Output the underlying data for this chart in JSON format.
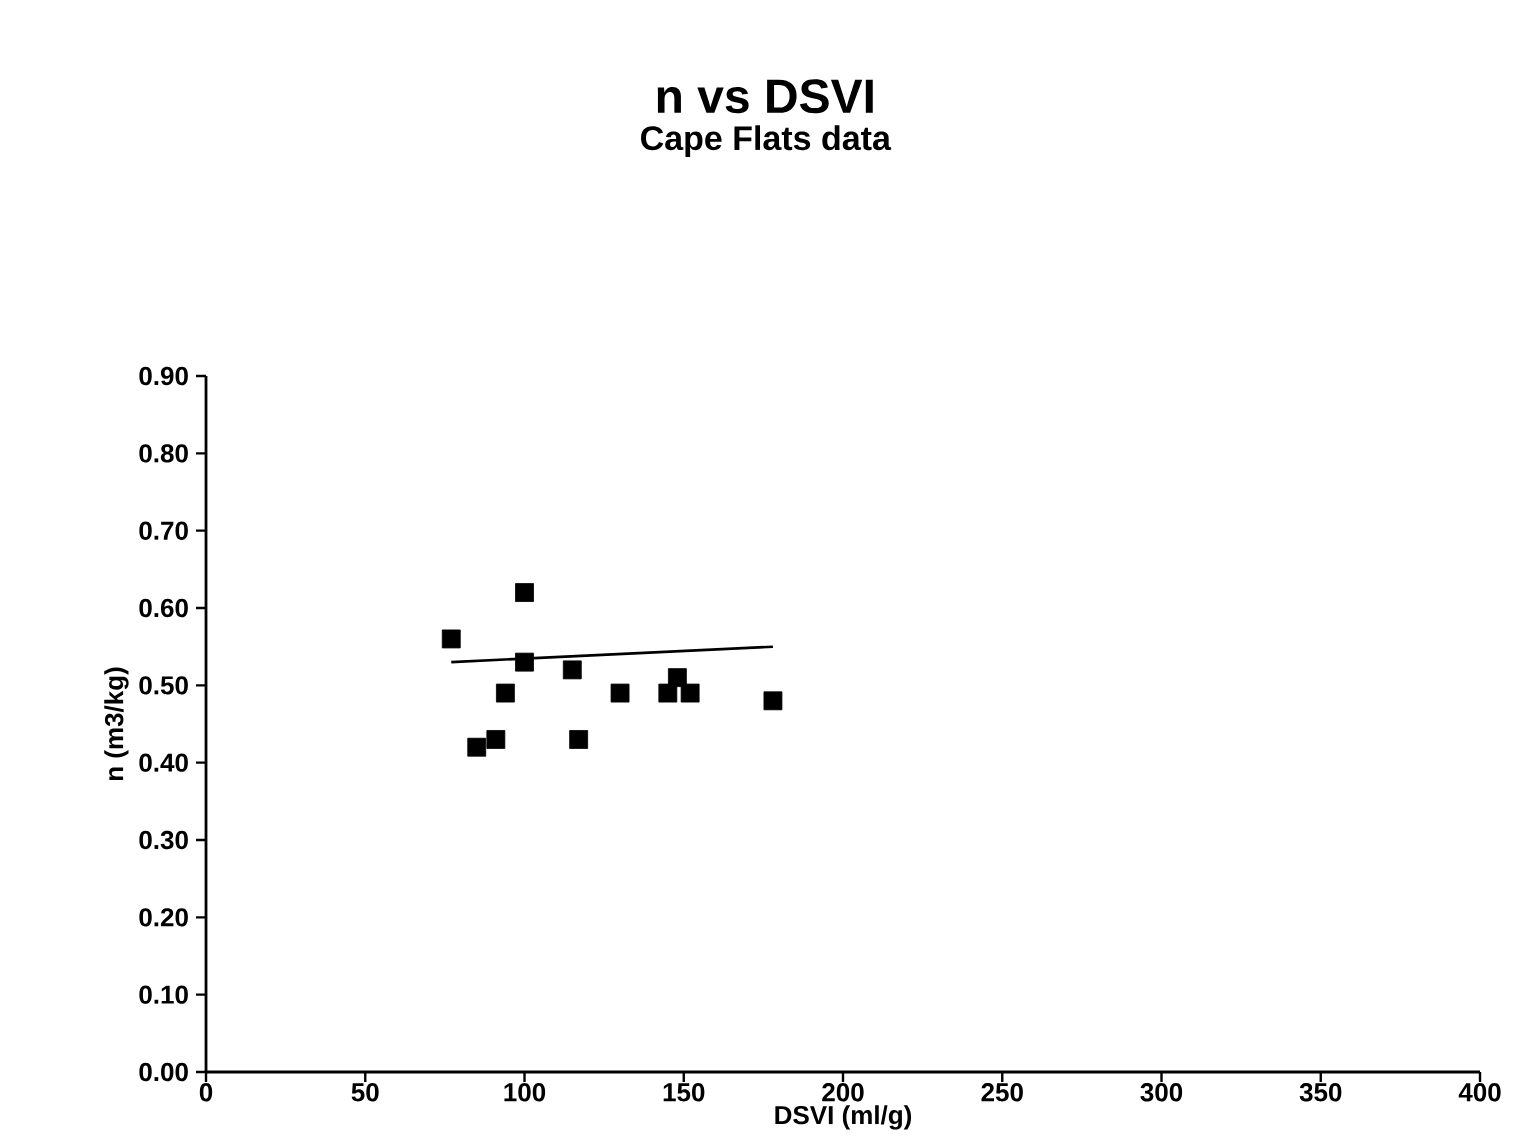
{
  "chart_data": {
    "type": "scatter",
    "title": "n vs DSVI",
    "subtitle": "Cape Flats data",
    "xlabel": "DSVI (ml/g)",
    "ylabel": "n (m3/kg)",
    "xlim": [
      0,
      400
    ],
    "ylim": [
      0,
      0.9
    ],
    "xticks": [
      0,
      50,
      100,
      150,
      200,
      250,
      300,
      350,
      400
    ],
    "yticks": [
      {
        "value": 0,
        "label": "0.00"
      },
      {
        "value": 0.1,
        "label": "0.10"
      },
      {
        "value": 0.2,
        "label": "0.20"
      },
      {
        "value": 0.3,
        "label": "0.30"
      },
      {
        "value": 0.4,
        "label": "0.40"
      },
      {
        "value": 0.5,
        "label": "0.50"
      },
      {
        "value": 0.6,
        "label": "0.60"
      },
      {
        "value": 0.7,
        "label": "0.70"
      },
      {
        "value": 0.8,
        "label": "0.80"
      },
      {
        "value": 0.9,
        "label": "0.90"
      }
    ],
    "marker": "square",
    "series": [
      {
        "color": "#000000",
        "x": [
          77,
          100,
          100,
          115,
          94,
          130,
          148,
          145,
          152,
          178,
          91,
          85,
          117
        ],
        "values": [
          0.56,
          0.62,
          0.53,
          0.52,
          0.49,
          0.49,
          0.51,
          0.49,
          0.49,
          0.48,
          0.43,
          0.42,
          0.43
        ]
      },
      {
        "type": "line",
        "color": "#000000",
        "marker": "none",
        "line_style": "solid",
        "x": [
          77,
          178
        ],
        "values": [
          0.53,
          0.55
        ]
      }
    ]
  }
}
